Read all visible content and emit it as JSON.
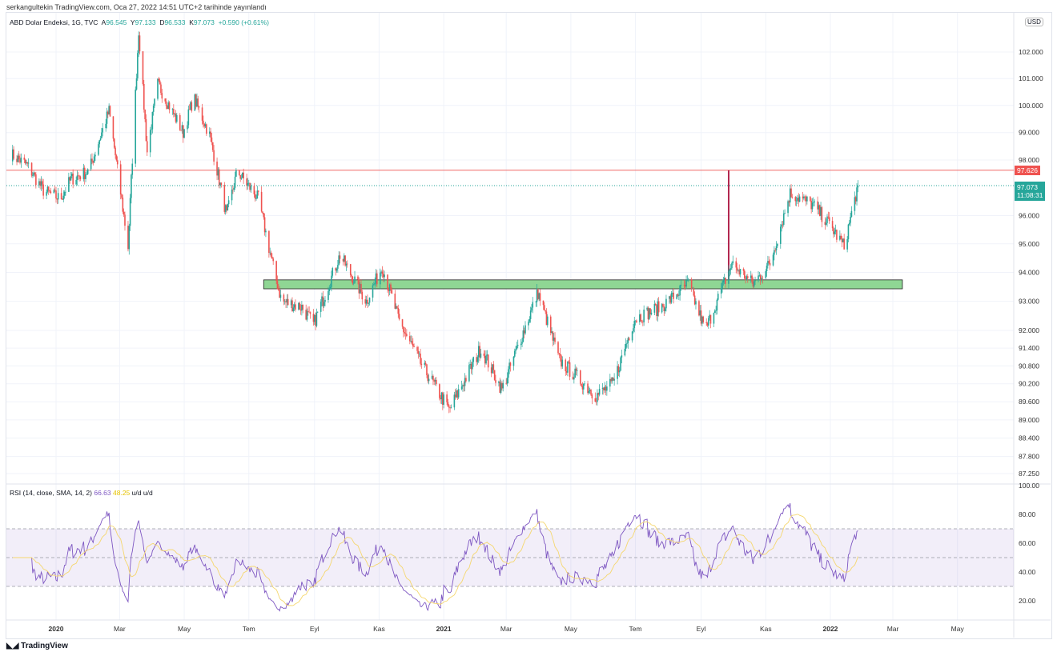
{
  "publish_line": "serkangultekin TradingView.com, Oca 27, 2022 14:51 UTC+2 tarihinde yayınlandı",
  "legend": {
    "symbol": "ABD Dolar Endeksi, 1G, TVC",
    "o_label": "A",
    "o": "96.545",
    "h_label": "Y",
    "h": "97.133",
    "l_label": "D",
    "l": "96.533",
    "c_label": "K",
    "c": "97.073",
    "change": "+0.590 (+0.61%)"
  },
  "rsi_legend": {
    "name": "RSI (14, close, SMA, 14, 2)",
    "rsi": "66.63",
    "sma": "48.25",
    "u1": "u/d",
    "u2": "u/d"
  },
  "currency": "USD",
  "resistance_tag": "97.626",
  "last_price_tag": "97.073",
  "countdown": "11:08:31",
  "brand": "TradingView",
  "colors": {
    "up": "#26a69a",
    "down": "#ef5350",
    "rsi": "#7e57c2",
    "sma": "#f5d76e",
    "zone": "#8fd694",
    "resistance": "#ef5350",
    "marker": "#b2264f"
  },
  "chart_data": {
    "type": "candlestick",
    "price_ticks": [
      "102.000",
      "101.000",
      "100.000",
      "99.000",
      "98.000",
      "96.000",
      "95.000",
      "94.000",
      "93.000",
      "92.000",
      "91.400",
      "90.800",
      "90.200",
      "89.600",
      "89.000",
      "88.400",
      "87.800",
      "87.250"
    ],
    "rsi_ticks": [
      "100.00",
      "80.00",
      "60.00",
      "40.00",
      "20.00"
    ],
    "time_ticks": [
      [
        "2020",
        "2020-01-01"
      ],
      [
        "Mar",
        "2020-03-01"
      ],
      [
        "May",
        "2020-05-01"
      ],
      [
        "Tem",
        "2020-07-01"
      ],
      [
        "Eyl",
        "2020-09-01"
      ],
      [
        "Kas",
        "2020-11-01"
      ],
      [
        "2021",
        "2021-01-01"
      ],
      [
        "Mar",
        "2021-03-01"
      ],
      [
        "May",
        "2021-05-01"
      ],
      [
        "Tem",
        "2021-07-01"
      ],
      [
        "Eyl",
        "2021-09-01"
      ],
      [
        "Kas",
        "2021-11-01"
      ],
      [
        "2022",
        "2022-01-01"
      ],
      [
        "Mar",
        "2022-03-01"
      ],
      [
        "May",
        "2022-05-01"
      ]
    ],
    "keypoints": [
      [
        "2019-11-20",
        98.2
      ],
      [
        "2019-12-05",
        97.8
      ],
      [
        "2019-12-20",
        96.9
      ],
      [
        "2020-01-05",
        96.6
      ],
      [
        "2020-01-15",
        97.3
      ],
      [
        "2020-02-01",
        97.6
      ],
      [
        "2020-02-20",
        99.8
      ],
      [
        "2020-03-09",
        94.9
      ],
      [
        "2020-03-19",
        102.8
      ],
      [
        "2020-03-27",
        98.3
      ],
      [
        "2020-04-06",
        100.8
      ],
      [
        "2020-04-30",
        99.0
      ],
      [
        "2020-05-10",
        100.3
      ],
      [
        "2020-05-25",
        98.9
      ],
      [
        "2020-06-10",
        96.0
      ],
      [
        "2020-06-20",
        97.6
      ],
      [
        "2020-07-10",
        96.6
      ],
      [
        "2020-07-25",
        94.0
      ],
      [
        "2020-08-01",
        93.0
      ],
      [
        "2020-08-20",
        92.8
      ],
      [
        "2020-08-31",
        92.2
      ],
      [
        "2020-09-25",
        94.6
      ],
      [
        "2020-10-20",
        93.0
      ],
      [
        "2020-11-04",
        94.2
      ],
      [
        "2020-11-20",
        92.3
      ],
      [
        "2020-12-10",
        90.9
      ],
      [
        "2020-12-31",
        89.7
      ],
      [
        "2021-01-06",
        89.3
      ],
      [
        "2021-02-05",
        91.4
      ],
      [
        "2021-02-25",
        90.0
      ],
      [
        "2021-03-31",
        93.3
      ],
      [
        "2021-04-20",
        91.0
      ],
      [
        "2021-05-25",
        89.8
      ],
      [
        "2021-06-10",
        90.2
      ],
      [
        "2021-06-30",
        92.4
      ],
      [
        "2021-07-25",
        92.8
      ],
      [
        "2021-08-20",
        93.6
      ],
      [
        "2021-09-05",
        92.0
      ],
      [
        "2021-09-30",
        94.3
      ],
      [
        "2021-10-20",
        93.6
      ],
      [
        "2021-11-05",
        94.3
      ],
      [
        "2021-11-24",
        96.8
      ],
      [
        "2021-12-15",
        96.4
      ],
      [
        "2021-12-31",
        95.7
      ],
      [
        "2022-01-14",
        94.9
      ],
      [
        "2022-01-27",
        97.07
      ]
    ],
    "resistance_level": 97.626,
    "support_zone": [
      93.43,
      93.74
    ],
    "support_zone_dates": [
      "2020-07-15",
      "2022-03-10"
    ],
    "breakout_marker": {
      "date": "2021-09-27",
      "from": 93.74,
      "to": 97.626
    },
    "rsi_bands": [
      30,
      50,
      70
    ]
  }
}
